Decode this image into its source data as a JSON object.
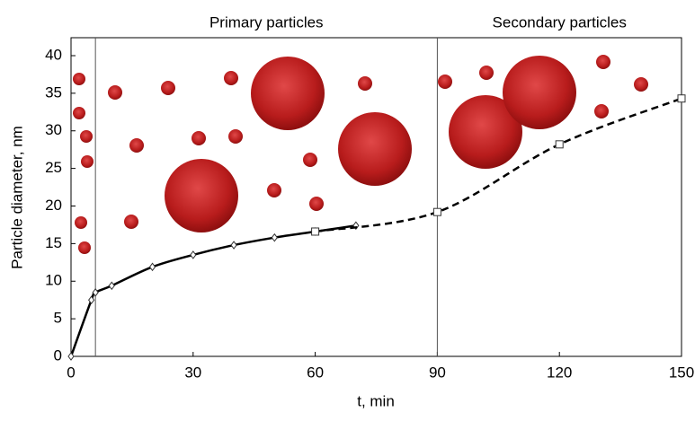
{
  "chart_data": {
    "type": "line",
    "xlabel": "t, min",
    "ylabel": "Particle diameter, nm",
    "xlim": [
      0,
      150
    ],
    "ylim": [
      0,
      40
    ],
    "xticks": [
      0,
      30,
      60,
      90,
      120,
      150
    ],
    "yticks": [
      0,
      5,
      10,
      15,
      20,
      25,
      30,
      35,
      40
    ],
    "regions": [
      {
        "label": "Primary particles",
        "from": 6,
        "to": 90
      },
      {
        "label": "Secondary particles",
        "from": 90,
        "to": 150
      }
    ],
    "series": [
      {
        "color": "#000000",
        "dash": false,
        "marker": "diamond",
        "x": [
          0,
          5,
          6,
          10,
          20,
          30,
          40,
          50,
          60,
          70
        ],
        "values": [
          0,
          7.5,
          8.5,
          9.4,
          11.9,
          13.5,
          14.8,
          15.8,
          16.6,
          17.4
        ]
      },
      {
        "color": "#000000",
        "dash": true,
        "marker": "square",
        "x": [
          60,
          90,
          120,
          150
        ],
        "values": [
          16.6,
          19.2,
          28.2,
          34.3
        ]
      }
    ]
  }
}
